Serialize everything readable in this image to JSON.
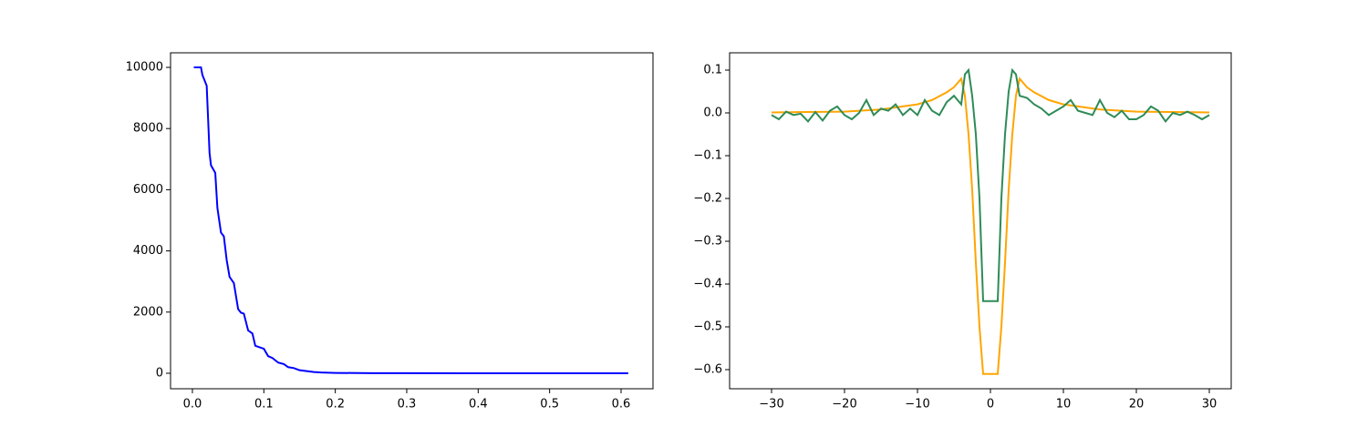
{
  "chart_data": [
    {
      "type": "line",
      "x": [
        0.002,
        0.012,
        0.014,
        0.02,
        0.024,
        0.026,
        0.032,
        0.035,
        0.04,
        0.044,
        0.048,
        0.052,
        0.058,
        0.064,
        0.068,
        0.072,
        0.078,
        0.084,
        0.088,
        0.094,
        0.1,
        0.106,
        0.112,
        0.12,
        0.128,
        0.134,
        0.142,
        0.15,
        0.16,
        0.17,
        0.18,
        0.2,
        0.25,
        0.3,
        0.4,
        0.5,
        0.61
      ],
      "series": [
        {
          "color": "#0000ff",
          "values": [
            10000,
            10000,
            9750,
            9400,
            7200,
            6800,
            6550,
            5400,
            4600,
            4480,
            3700,
            3150,
            2950,
            2100,
            1980,
            1950,
            1400,
            1300,
            900,
            850,
            800,
            560,
            500,
            350,
            300,
            200,
            170,
            100,
            70,
            40,
            25,
            12,
            4,
            2,
            0.5,
            0.2,
            0.1
          ]
        }
      ],
      "xlim": [
        -0.0306,
        0.6447
      ],
      "ylim": [
        -506,
        10476
      ],
      "xticks": [
        {
          "value": 0,
          "label": "0.0"
        },
        0.1,
        0.2,
        0.3,
        0.4,
        0.5,
        0.6
      ],
      "yticks": [
        0,
        2000,
        4000,
        6000,
        8000,
        10000
      ]
    },
    {
      "type": "line",
      "series": [
        {
          "color": "#ffa500",
          "x": [
            -30,
            -25,
            -20,
            -15,
            -10,
            -8,
            -6,
            -5,
            -4,
            -3.5,
            -3,
            -2.5,
            -2,
            -1.5,
            -1,
            1,
            1.5,
            2,
            2.5,
            3,
            3.5,
            4,
            5,
            6,
            8,
            10,
            15,
            20,
            25,
            30
          ],
          "values": [
            0.001,
            0.002,
            0.003,
            0.008,
            0.02,
            0.03,
            0.048,
            0.06,
            0.08,
            0.04,
            -0.05,
            -0.18,
            -0.35,
            -0.5,
            -0.61,
            -0.61,
            -0.5,
            -0.35,
            -0.18,
            -0.05,
            0.04,
            0.08,
            0.06,
            0.048,
            0.03,
            0.02,
            0.008,
            0.003,
            0.002,
            0.001
          ]
        },
        {
          "color": "#2e8b57",
          "x": [
            -30,
            -29,
            -28,
            -27,
            -26,
            -25,
            -24,
            -23,
            -22,
            -21,
            -20,
            -19,
            -18,
            -17,
            -16,
            -15,
            -14,
            -13,
            -12,
            -11,
            -10,
            -9,
            -8,
            -7,
            -6,
            -5,
            -4,
            -3.5,
            -3,
            -2.5,
            -2,
            -1.5,
            -1,
            1,
            1.5,
            2,
            2.5,
            3,
            3.5,
            4,
            5,
            6,
            7,
            8,
            9,
            10,
            11,
            12,
            13,
            14,
            15,
            16,
            17,
            18,
            19,
            20,
            21,
            22,
            23,
            24,
            25,
            26,
            27,
            28,
            29,
            30
          ],
          "values": [
            -0.005,
            -0.015,
            0.003,
            -0.005,
            -0.002,
            -0.02,
            0.002,
            -0.018,
            0.005,
            0.015,
            -0.005,
            -0.015,
            0.0,
            0.03,
            -0.005,
            0.01,
            0.005,
            0.02,
            -0.005,
            0.01,
            -0.005,
            0.03,
            0.005,
            -0.005,
            0.025,
            0.04,
            0.02,
            0.09,
            0.1,
            0.04,
            -0.05,
            -0.2,
            -0.44,
            -0.44,
            -0.2,
            -0.05,
            0.05,
            0.1,
            0.09,
            0.04,
            0.035,
            0.02,
            0.01,
            -0.005,
            0.005,
            0.015,
            0.03,
            0.005,
            0.0,
            -0.005,
            0.03,
            0.0,
            -0.01,
            0.005,
            -0.015,
            -0.015,
            -0.005,
            0.015,
            0.005,
            -0.02,
            0.0,
            -0.005,
            0.003,
            -0.005,
            -0.015,
            -0.005
          ]
        }
      ],
      "xlim": [
        -35.75,
        33
      ],
      "ylim": [
        -0.6447,
        0.1404
      ],
      "xticks": [
        {
          "value": -30,
          "label": "−30"
        },
        {
          "value": -20,
          "label": "−20"
        },
        {
          "value": -10,
          "label": "−10"
        },
        0,
        10,
        20,
        30
      ],
      "yticks": [
        {
          "value": -0.6,
          "label": "−0.6"
        },
        {
          "value": -0.5,
          "label": "−0.5"
        },
        {
          "value": -0.4,
          "label": "−0.4"
        },
        {
          "value": -0.3,
          "label": "−0.3"
        },
        {
          "value": -0.2,
          "label": "−0.2"
        },
        {
          "value": -0.1,
          "label": "−0.1"
        },
        {
          "value": 0,
          "label": "0.0"
        },
        0.1
      ]
    }
  ]
}
